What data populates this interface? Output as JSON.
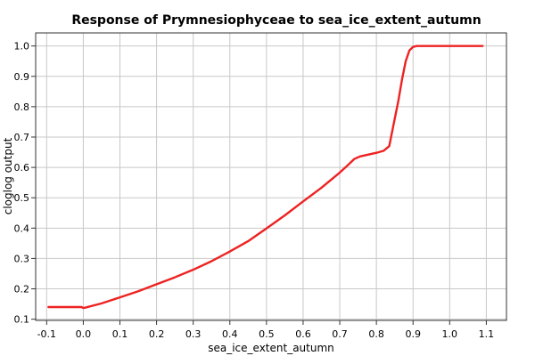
{
  "chart_data": {
    "type": "line",
    "title": "Response of Prymnesiophyceae to sea_ice_extent_autumn",
    "xlabel": "sea_ice_extent_autumn",
    "ylabel": "cloglog output",
    "xlim": [
      -0.13,
      1.155
    ],
    "ylim": [
      0.096,
      1.043
    ],
    "xticks": [
      -0.1,
      0.0,
      0.1,
      0.2,
      0.3,
      0.4,
      0.5,
      0.6,
      0.7,
      0.8,
      0.9,
      1.0,
      1.1
    ],
    "xtick_labels": [
      "-0.1",
      "0.0",
      "0.1",
      "0.2",
      "0.3",
      "0.4",
      "0.5",
      "0.6",
      "0.7",
      "0.8",
      "0.9",
      "1.0",
      "1.1"
    ],
    "yticks": [
      0.1,
      0.2,
      0.3,
      0.4,
      0.5,
      0.6,
      0.7,
      0.8,
      0.9,
      1.0
    ],
    "ytick_labels": [
      "0.1",
      "0.2",
      "0.3",
      "0.4",
      "0.5",
      "0.6",
      "0.7",
      "0.8",
      "0.9",
      "1.0"
    ],
    "grid": true,
    "line_color": "#ee2222",
    "series": [
      {
        "x": [
          -0.095,
          -0.05,
          -0.005,
          0.0,
          0.005,
          0.05,
          0.1,
          0.15,
          0.2,
          0.25,
          0.3,
          0.35,
          0.4,
          0.45,
          0.5,
          0.55,
          0.6,
          0.65,
          0.7,
          0.72,
          0.74,
          0.755,
          0.77,
          0.8,
          0.82,
          0.835,
          0.84,
          0.85,
          0.86,
          0.87,
          0.88,
          0.89,
          0.9,
          0.91,
          0.93,
          1.0,
          1.09
        ],
        "y": [
          0.14,
          0.14,
          0.14,
          0.137,
          0.138,
          0.152,
          0.172,
          0.192,
          0.215,
          0.238,
          0.263,
          0.291,
          0.323,
          0.357,
          0.399,
          0.442,
          0.488,
          0.533,
          0.583,
          0.605,
          0.628,
          0.636,
          0.64,
          0.648,
          0.655,
          0.67,
          0.7,
          0.76,
          0.82,
          0.89,
          0.95,
          0.985,
          0.997,
          1.0,
          1.0,
          1.0,
          1.0
        ]
      }
    ]
  }
}
